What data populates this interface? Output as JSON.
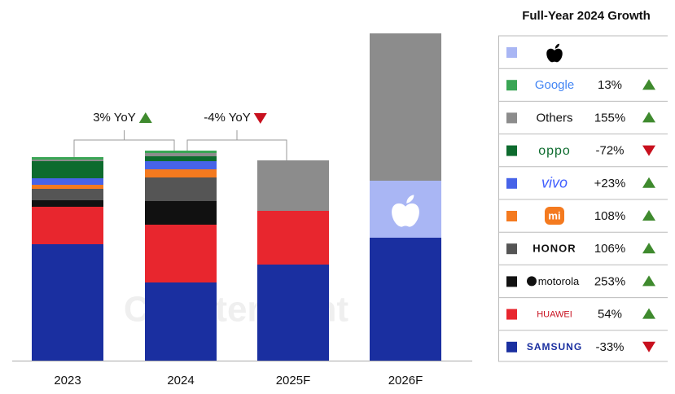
{
  "chart_data": {
    "type": "bar",
    "stacked": true,
    "watermark": "Counterpoint",
    "categories": [
      "2023",
      "2024",
      "2025F",
      "2026F"
    ],
    "legend_title": "Full-Year 2024 Growth",
    "series": [
      {
        "color": "#a9b6f4",
        "values": [
          0,
          0,
          0,
          70
        ]
      },
      {
        "name": "Google",
        "color": "#3aa655",
        "values": [
          3,
          3,
          0,
          0
        ],
        "growth": 13,
        "growth_label": "13%"
      },
      {
        "name": "Others",
        "color": "#8c8c8c",
        "values": [
          2,
          4,
          62,
          181
        ],
        "growth": 155,
        "growth_label": "155%"
      },
      {
        "name": "oppo",
        "color": "#0d6b2e",
        "values": [
          21,
          6,
          0,
          0
        ],
        "growth": -72,
        "growth_label": "-72%"
      },
      {
        "name": "vivo",
        "color": "#4763e8",
        "values": [
          8,
          10,
          0,
          0
        ],
        "growth": 23,
        "growth_label": "+23%"
      },
      {
        "name": "mi",
        "color": "#f47a1f",
        "values": [
          5,
          10,
          0,
          0
        ],
        "growth": 108,
        "growth_label": "108%"
      },
      {
        "name": "HONOR",
        "color": "#555555",
        "values": [
          14,
          29,
          0,
          0
        ],
        "growth": 106,
        "growth_label": "106%"
      },
      {
        "name": "motorola",
        "color": "#111111",
        "values": [
          8,
          29,
          0,
          0
        ],
        "growth": 253,
        "growth_label": "253%"
      },
      {
        "name": "HUAWEI",
        "color": "#e8262e",
        "values": [
          46,
          71,
          66,
          0
        ],
        "growth": 54,
        "growth_label": "54%"
      },
      {
        "name": "SAMSUNG",
        "color": "#1a2fa0",
        "values": [
          143,
          96,
          118,
          151
        ],
        "growth": -33,
        "growth_label": "-33%"
      }
    ],
    "annotations": [
      {
        "text": "3% YoY",
        "value": 3
      },
      {
        "text": "-4% YoY",
        "value": -4
      }
    ]
  }
}
